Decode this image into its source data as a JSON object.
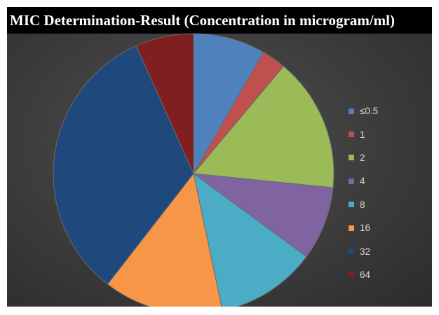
{
  "chart_data": {
    "type": "pie",
    "title": "MIC Determination-Result (Concentration in microgram/ml)",
    "categories": [
      "≤0.5",
      "1",
      "2",
      "4",
      "8",
      "16",
      "32",
      "64"
    ],
    "values": [
      8.3,
      2.8,
      15.5,
      8.5,
      11.6,
      13.8,
      32.8,
      6.7
    ],
    "colors": [
      "#4f81bd",
      "#c0504d",
      "#9bbb59",
      "#8064a2",
      "#4bacc6",
      "#f79646",
      "#1f497d",
      "#7f1f1f"
    ],
    "legend_position": "right"
  }
}
